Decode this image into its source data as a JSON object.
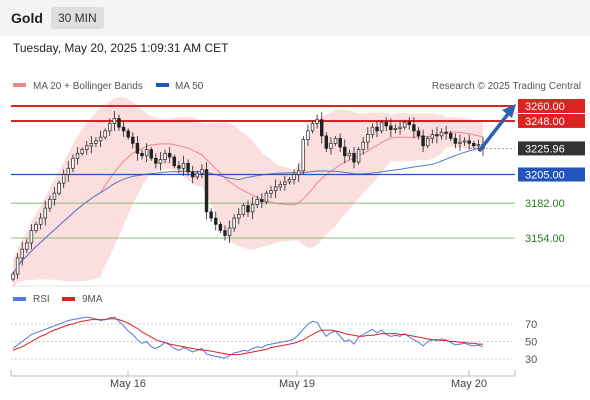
{
  "header": {
    "title": "Gold",
    "timeframe": "30 MIN"
  },
  "timestamp": "Tuesday, May 20, 2025 1:09:31 AM CET",
  "legend": {
    "ma20": "MA 20 + Bollinger Bands",
    "ma50": "MA 50",
    "credit": "Research © 2025 Trading Central"
  },
  "rsi_legend": {
    "rsi": "RSI",
    "ma9": "9MA"
  },
  "colors": {
    "resistance": "#dd2222",
    "support": "#2255bb",
    "target": "#66aa55",
    "ma20": "#e88",
    "ma50": "#5577cc",
    "band": "#f8c8c8",
    "arrow": "#2f5fae",
    "rsi": "#5577dd",
    "rsi_ma": "#dd2222"
  },
  "levels": [
    {
      "label": "3260.00",
      "value": 3260,
      "kind": "resistance"
    },
    {
      "label": "3248.00",
      "value": 3248,
      "kind": "resistance"
    },
    {
      "label": "3225.96",
      "value": 3225.96,
      "kind": "current"
    },
    {
      "label": "3205.00",
      "value": 3205,
      "kind": "support"
    },
    {
      "label": "3182.00",
      "value": 3182,
      "kind": "target"
    },
    {
      "label": "3154.00",
      "value": 3154,
      "kind": "target"
    }
  ],
  "chart_data": [
    {
      "type": "candlestick",
      "title": "Gold",
      "price_range": [
        3117,
        3267
      ],
      "x_ticks": [
        "May 16",
        "May 19",
        "May 20"
      ],
      "grid": false,
      "legend": "top-left",
      "candles_approx": {
        "closes": [
          3125,
          3138,
          3145,
          3150,
          3160,
          3165,
          3170,
          3178,
          3185,
          3190,
          3198,
          3205,
          3210,
          3218,
          3222,
          3225,
          3228,
          3230,
          3232,
          3235,
          3240,
          3246,
          3250,
          3243,
          3240,
          3235,
          3230,
          3222,
          3220,
          3225,
          3218,
          3214,
          3217,
          3222,
          3219,
          3212,
          3210,
          3214,
          3207,
          3203,
          3206,
          3209,
          3175,
          3170,
          3165,
          3160,
          3156,
          3162,
          3170,
          3173,
          3180,
          3175,
          3181,
          3185,
          3183,
          3190,
          3192,
          3195,
          3197,
          3199,
          3201,
          3205,
          3208,
          3233,
          3240,
          3246,
          3249,
          3236,
          3226,
          3230,
          3234,
          3227,
          3220,
          3222,
          3215,
          3225,
          3231,
          3237,
          3243,
          3240,
          3247,
          3244,
          3241,
          3242,
          3243,
          3247,
          3245,
          3240,
          3236,
          3228,
          3234,
          3237,
          3236,
          3239,
          3238,
          3234,
          3230,
          3231,
          3232,
          3230,
          3228,
          3229,
          3226
        ],
        "note": "approximate OHLC closes read from the candlestick chart"
      }
    },
    {
      "type": "line",
      "title": "RSI",
      "ylim": [
        20,
        80
      ],
      "y_ticks": [
        30,
        50,
        70
      ],
      "series": [
        {
          "name": "RSI",
          "values": [
            42,
            46,
            50,
            54,
            58,
            60,
            62,
            64,
            66,
            68,
            70,
            72,
            74,
            75,
            76,
            77,
            78,
            77,
            76,
            74,
            75,
            77,
            78,
            73,
            68,
            62,
            58,
            52,
            48,
            50,
            44,
            42,
            45,
            49,
            46,
            42,
            40,
            43,
            41,
            38,
            40,
            42,
            36,
            34,
            33,
            32,
            31,
            34,
            37,
            38,
            40,
            39,
            42,
            44,
            43,
            46,
            47,
            48,
            49,
            50,
            51,
            53,
            58,
            64,
            70,
            73,
            72,
            63,
            56,
            60,
            62,
            56,
            50,
            52,
            47,
            55,
            58,
            61,
            64,
            60,
            63,
            58,
            56,
            57,
            56,
            59,
            55,
            52,
            49,
            45,
            50,
            52,
            51,
            53,
            52,
            49,
            46,
            47,
            48,
            46,
            45,
            46,
            44
          ]
        },
        {
          "name": "9MA",
          "values": [
            40,
            42,
            44,
            47,
            50,
            53,
            56,
            58,
            61,
            63,
            65,
            67,
            69,
            70,
            72,
            73,
            74,
            75,
            75,
            75,
            75,
            76,
            76,
            75,
            73,
            71,
            68,
            65,
            61,
            58,
            55,
            52,
            50,
            49,
            47,
            46,
            45,
            44,
            43,
            42,
            41,
            40,
            40,
            39,
            38,
            37,
            36,
            35,
            35,
            35,
            36,
            37,
            38,
            39,
            40,
            41,
            43,
            44,
            45,
            46,
            47,
            48,
            50,
            52,
            55,
            58,
            61,
            63,
            63,
            63,
            62,
            61,
            59,
            58,
            57,
            56,
            56,
            57,
            57,
            58,
            59,
            59,
            59,
            59,
            58,
            58,
            57,
            56,
            55,
            54,
            53,
            52,
            52,
            51,
            51,
            50,
            50,
            49,
            49,
            48,
            48,
            47,
            47
          ]
        }
      ]
    }
  ]
}
